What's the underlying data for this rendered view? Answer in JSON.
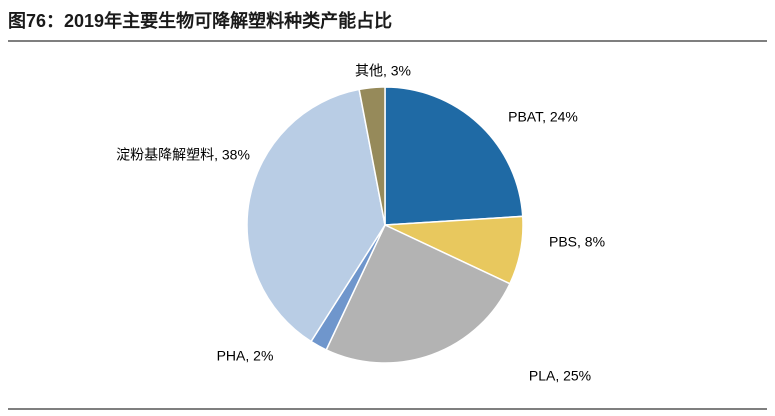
{
  "chart_data": {
    "type": "pie",
    "title": "图76：2019年主要生物可降解塑料种类产能占比",
    "values": [
      24,
      8,
      25,
      2,
      38,
      3
    ],
    "value_labels": [
      "PBAT, 24%",
      "PBS, 8%",
      "PLA, 25%",
      "PHA, 2%",
      "淀粉基降解塑料, 38%",
      "其他, 3%"
    ],
    "colors": [
      "#1f6aa5",
      "#e8c85e",
      "#b3b3b3",
      "#6f96cc",
      "#b9cde5",
      "#968a5a"
    ]
  }
}
